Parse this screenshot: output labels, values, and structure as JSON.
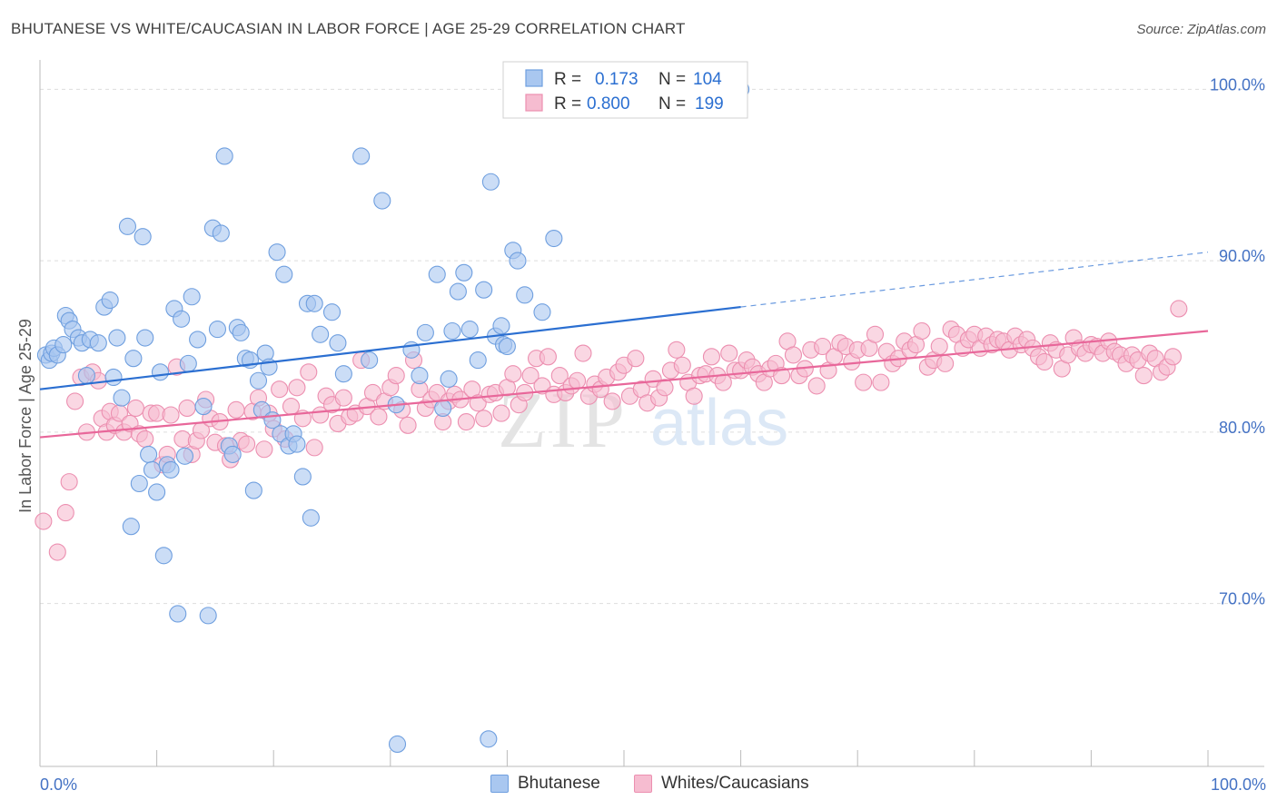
{
  "header": {
    "title": "BHUTANESE VS WHITE/CAUCASIAN IN LABOR FORCE | AGE 25-29 CORRELATION CHART",
    "source": "Source: ZipAtlas.com"
  },
  "watermark": {
    "part1": "ZIP",
    "part2": "atlas"
  },
  "legend": {
    "rows": [
      {
        "r_label": "R =",
        "r_value": "0.173",
        "n_label": "N =",
        "n_value": "104"
      },
      {
        "r_label": "R =",
        "r_value": "0.800",
        "n_label": "N =",
        "n_value": "199"
      }
    ]
  },
  "bottom_legend": {
    "series1": "Bhutanese",
    "series2": "Whites/Caucasians"
  },
  "chart_data": {
    "type": "scatter",
    "title": "BHUTANESE VS WHITE/CAUCASIAN IN LABOR FORCE | AGE 25-29 CORRELATION CHART",
    "ylabel": "In Labor Force | Age 25-29",
    "xlabel": "",
    "xlim": [
      0,
      100
    ],
    "ylim": [
      60.5,
      101.5
    ],
    "x_tick_labels": [
      "0.0%",
      "100.0%"
    ],
    "y_ticks": [
      70,
      80,
      90,
      100
    ],
    "y_tick_labels": [
      "70.0%",
      "80.0%",
      "90.0%",
      "100.0%"
    ],
    "grid": "horizontal dashed",
    "legend_position": "top-center",
    "colors": {
      "blue_fill": "#a9c7f0",
      "blue_stroke": "#6f9fdf",
      "blue_line": "#2b6fd1",
      "pink_fill": "#f6bcd0",
      "pink_stroke": "#ec8fb0",
      "pink_line": "#e8679a",
      "tick_text": "#4472c4"
    },
    "series": [
      {
        "name": "Bhutanese",
        "r": 0.173,
        "n": 104,
        "trend": {
          "x": [
            0,
            60
          ],
          "y": [
            82.5,
            87.3
          ],
          "dashed_to": [
            100,
            90.5
          ]
        },
        "points": [
          [
            0.5,
            84.5
          ],
          [
            0.8,
            84.2
          ],
          [
            1.0,
            84.6
          ],
          [
            1.2,
            84.9
          ],
          [
            1.5,
            84.5
          ],
          [
            2.0,
            85.1
          ],
          [
            2.2,
            86.8
          ],
          [
            2.5,
            86.5
          ],
          [
            2.8,
            86.0
          ],
          [
            3.3,
            85.5
          ],
          [
            3.6,
            85.2
          ],
          [
            4.0,
            83.3
          ],
          [
            4.3,
            85.4
          ],
          [
            5.0,
            85.2
          ],
          [
            5.5,
            87.3
          ],
          [
            6.0,
            87.7
          ],
          [
            6.3,
            83.2
          ],
          [
            6.6,
            85.5
          ],
          [
            7.0,
            82.0
          ],
          [
            7.5,
            92.0
          ],
          [
            7.8,
            74.5
          ],
          [
            8.0,
            84.3
          ],
          [
            8.5,
            77.0
          ],
          [
            8.8,
            91.4
          ],
          [
            9.0,
            85.5
          ],
          [
            9.3,
            78.7
          ],
          [
            9.6,
            77.8
          ],
          [
            10.0,
            76.5
          ],
          [
            10.3,
            83.5
          ],
          [
            10.6,
            72.8
          ],
          [
            10.9,
            78.1
          ],
          [
            11.2,
            77.8
          ],
          [
            11.5,
            87.2
          ],
          [
            11.8,
            69.4
          ],
          [
            12.1,
            86.6
          ],
          [
            12.4,
            78.6
          ],
          [
            12.7,
            84.0
          ],
          [
            13.0,
            87.9
          ],
          [
            13.5,
            85.4
          ],
          [
            14.0,
            81.5
          ],
          [
            14.4,
            69.3
          ],
          [
            14.8,
            91.9
          ],
          [
            15.2,
            86.0
          ],
          [
            15.5,
            91.6
          ],
          [
            15.8,
            96.1
          ],
          [
            16.2,
            79.2
          ],
          [
            16.5,
            78.7
          ],
          [
            16.9,
            86.1
          ],
          [
            17.2,
            85.8
          ],
          [
            17.6,
            84.3
          ],
          [
            18.0,
            84.2
          ],
          [
            18.3,
            76.6
          ],
          [
            18.7,
            83.0
          ],
          [
            19.0,
            81.3
          ],
          [
            19.3,
            84.6
          ],
          [
            19.6,
            83.8
          ],
          [
            19.9,
            80.7
          ],
          [
            20.3,
            90.5
          ],
          [
            20.6,
            79.9
          ],
          [
            20.9,
            89.2
          ],
          [
            21.3,
            79.2
          ],
          [
            21.7,
            79.9
          ],
          [
            22.0,
            79.3
          ],
          [
            22.5,
            77.4
          ],
          [
            22.9,
            87.5
          ],
          [
            23.2,
            75.0
          ],
          [
            23.5,
            87.5
          ],
          [
            24.0,
            85.7
          ],
          [
            25.0,
            87.0
          ],
          [
            25.5,
            85.2
          ],
          [
            26.0,
            83.4
          ],
          [
            27.5,
            96.1
          ],
          [
            28.2,
            84.2
          ],
          [
            29.3,
            93.5
          ],
          [
            30.5,
            81.6
          ],
          [
            31.8,
            84.8
          ],
          [
            32.5,
            83.3
          ],
          [
            33.0,
            85.8
          ],
          [
            34.0,
            89.2
          ],
          [
            34.5,
            81.4
          ],
          [
            35.0,
            83.1
          ],
          [
            35.3,
            85.9
          ],
          [
            35.8,
            88.2
          ],
          [
            36.3,
            89.3
          ],
          [
            36.8,
            86.0
          ],
          [
            37.5,
            84.2
          ],
          [
            38.0,
            88.3
          ],
          [
            38.6,
            94.6
          ],
          [
            39.0,
            85.6
          ],
          [
            39.5,
            86.2
          ],
          [
            39.7,
            85.1
          ],
          [
            40.0,
            85.0
          ],
          [
            40.5,
            90.6
          ],
          [
            40.9,
            90.0
          ],
          [
            41.5,
            88.0
          ],
          [
            43.0,
            87.0
          ],
          [
            44.0,
            91.3
          ],
          [
            30.6,
            61.8
          ],
          [
            38.4,
            62.1
          ],
          [
            60.0,
            100.0
          ]
        ]
      },
      {
        "name": "Whites/Caucasians",
        "r": 0.8,
        "n": 199,
        "trend": {
          "x": [
            0,
            100
          ],
          "y": [
            79.7,
            85.9
          ]
        },
        "points": [
          [
            0.3,
            74.8
          ],
          [
            1.5,
            73.0
          ],
          [
            2.2,
            75.3
          ],
          [
            2.5,
            77.1
          ],
          [
            3.0,
            81.8
          ],
          [
            3.5,
            83.2
          ],
          [
            4.0,
            80.0
          ],
          [
            4.5,
            83.5
          ],
          [
            5.0,
            83.0
          ],
          [
            5.3,
            80.8
          ],
          [
            5.7,
            80.0
          ],
          [
            6.0,
            81.2
          ],
          [
            6.4,
            80.4
          ],
          [
            6.8,
            81.1
          ],
          [
            7.2,
            80.0
          ],
          [
            7.7,
            80.5
          ],
          [
            8.2,
            81.4
          ],
          [
            8.5,
            79.9
          ],
          [
            9.0,
            79.6
          ],
          [
            9.5,
            81.1
          ],
          [
            10.0,
            81.1
          ],
          [
            10.5,
            78.1
          ],
          [
            10.9,
            78.7
          ],
          [
            11.2,
            81.0
          ],
          [
            11.7,
            83.8
          ],
          [
            12.2,
            79.6
          ],
          [
            12.6,
            81.4
          ],
          [
            13.0,
            78.7
          ],
          [
            13.4,
            79.5
          ],
          [
            13.8,
            80.1
          ],
          [
            14.2,
            81.9
          ],
          [
            14.6,
            80.8
          ],
          [
            15.0,
            79.4
          ],
          [
            15.4,
            80.6
          ],
          [
            15.9,
            79.2
          ],
          [
            16.3,
            78.4
          ],
          [
            16.8,
            81.3
          ],
          [
            17.2,
            79.5
          ],
          [
            17.7,
            79.3
          ],
          [
            18.2,
            81.2
          ],
          [
            18.7,
            82.0
          ],
          [
            19.2,
            79.0
          ],
          [
            19.6,
            81.1
          ],
          [
            20.0,
            80.2
          ],
          [
            20.5,
            82.5
          ],
          [
            21.0,
            79.6
          ],
          [
            21.5,
            81.5
          ],
          [
            22.0,
            82.6
          ],
          [
            22.5,
            80.8
          ],
          [
            23.0,
            83.5
          ],
          [
            23.5,
            79.1
          ],
          [
            24.0,
            81.0
          ],
          [
            24.5,
            82.1
          ],
          [
            25.0,
            81.6
          ],
          [
            25.5,
            80.5
          ],
          [
            26.0,
            82.0
          ],
          [
            26.5,
            80.9
          ],
          [
            27.0,
            81.1
          ],
          [
            27.5,
            84.2
          ],
          [
            28.0,
            81.5
          ],
          [
            28.5,
            82.3
          ],
          [
            29.0,
            80.9
          ],
          [
            29.5,
            81.8
          ],
          [
            30.0,
            82.6
          ],
          [
            30.5,
            83.3
          ],
          [
            31.0,
            81.3
          ],
          [
            31.5,
            80.4
          ],
          [
            32.0,
            84.2
          ],
          [
            32.5,
            82.5
          ],
          [
            33.0,
            81.4
          ],
          [
            33.5,
            81.9
          ],
          [
            34.0,
            82.3
          ],
          [
            34.5,
            80.6
          ],
          [
            35.0,
            81.8
          ],
          [
            35.5,
            82.2
          ],
          [
            36.0,
            81.9
          ],
          [
            36.5,
            80.6
          ],
          [
            37.0,
            82.5
          ],
          [
            37.5,
            81.7
          ],
          [
            38.0,
            80.8
          ],
          [
            38.5,
            82.2
          ],
          [
            39.0,
            82.3
          ],
          [
            39.5,
            81.1
          ],
          [
            40.0,
            82.6
          ],
          [
            40.5,
            83.4
          ],
          [
            41.0,
            81.6
          ],
          [
            41.5,
            82.3
          ],
          [
            42.0,
            83.3
          ],
          [
            42.5,
            84.3
          ],
          [
            43.0,
            82.7
          ],
          [
            43.5,
            84.4
          ],
          [
            44.0,
            82.2
          ],
          [
            44.5,
            83.3
          ],
          [
            45.0,
            82.3
          ],
          [
            45.5,
            82.7
          ],
          [
            46.0,
            83.0
          ],
          [
            46.5,
            84.6
          ],
          [
            47.0,
            82.1
          ],
          [
            47.5,
            82.8
          ],
          [
            48.0,
            82.5
          ],
          [
            48.5,
            83.2
          ],
          [
            49.0,
            81.8
          ],
          [
            49.5,
            83.5
          ],
          [
            50.0,
            83.9
          ],
          [
            50.5,
            82.1
          ],
          [
            51.0,
            84.3
          ],
          [
            51.5,
            82.5
          ],
          [
            52.0,
            81.7
          ],
          [
            52.5,
            83.1
          ],
          [
            53.0,
            82.0
          ],
          [
            53.5,
            82.6
          ],
          [
            54.0,
            83.6
          ],
          [
            54.5,
            84.8
          ],
          [
            55.0,
            83.9
          ],
          [
            55.5,
            82.9
          ],
          [
            56.0,
            82.1
          ],
          [
            56.5,
            83.3
          ],
          [
            57.0,
            83.4
          ],
          [
            57.5,
            84.4
          ],
          [
            58.0,
            83.3
          ],
          [
            58.5,
            82.9
          ],
          [
            59.0,
            84.6
          ],
          [
            59.5,
            83.6
          ],
          [
            60.0,
            83.6
          ],
          [
            60.5,
            84.2
          ],
          [
            61.0,
            83.8
          ],
          [
            61.5,
            83.4
          ],
          [
            62.0,
            82.9
          ],
          [
            62.5,
            83.7
          ],
          [
            63.0,
            84.0
          ],
          [
            63.5,
            83.3
          ],
          [
            64.0,
            85.3
          ],
          [
            64.5,
            84.5
          ],
          [
            65.0,
            83.3
          ],
          [
            65.5,
            83.7
          ],
          [
            66.0,
            84.8
          ],
          [
            66.5,
            82.7
          ],
          [
            67.0,
            85.0
          ],
          [
            67.5,
            83.6
          ],
          [
            68.0,
            84.4
          ],
          [
            68.5,
            85.2
          ],
          [
            69.0,
            85.0
          ],
          [
            69.5,
            84.1
          ],
          [
            70.0,
            84.8
          ],
          [
            70.5,
            82.9
          ],
          [
            71.0,
            84.9
          ],
          [
            71.5,
            85.7
          ],
          [
            72.0,
            82.9
          ],
          [
            72.5,
            84.7
          ],
          [
            73.0,
            84.0
          ],
          [
            73.5,
            84.3
          ],
          [
            74.0,
            85.3
          ],
          [
            74.5,
            84.8
          ],
          [
            75.0,
            85.1
          ],
          [
            75.5,
            85.9
          ],
          [
            76.0,
            83.8
          ],
          [
            76.5,
            84.2
          ],
          [
            77.0,
            85.0
          ],
          [
            77.5,
            84.0
          ],
          [
            78.0,
            86.0
          ],
          [
            78.5,
            85.7
          ],
          [
            79.0,
            84.9
          ],
          [
            79.5,
            85.4
          ],
          [
            80.0,
            85.7
          ],
          [
            80.5,
            84.9
          ],
          [
            81.0,
            85.6
          ],
          [
            81.5,
            85.1
          ],
          [
            82.0,
            85.4
          ],
          [
            82.5,
            85.3
          ],
          [
            83.0,
            84.8
          ],
          [
            83.5,
            85.6
          ],
          [
            84.0,
            85.1
          ],
          [
            84.5,
            85.4
          ],
          [
            85.0,
            84.9
          ],
          [
            85.5,
            84.4
          ],
          [
            86.0,
            84.1
          ],
          [
            86.5,
            85.2
          ],
          [
            87.0,
            84.8
          ],
          [
            87.5,
            83.7
          ],
          [
            88.0,
            84.5
          ],
          [
            88.5,
            85.5
          ],
          [
            89.0,
            84.9
          ],
          [
            89.5,
            84.6
          ],
          [
            90.0,
            85.1
          ],
          [
            90.5,
            85.0
          ],
          [
            91.0,
            84.6
          ],
          [
            91.5,
            85.3
          ],
          [
            92.0,
            84.7
          ],
          [
            92.5,
            84.5
          ],
          [
            93.0,
            84.0
          ],
          [
            93.5,
            84.5
          ],
          [
            94.0,
            84.2
          ],
          [
            94.5,
            83.3
          ],
          [
            95.0,
            84.6
          ],
          [
            95.5,
            84.3
          ],
          [
            96.0,
            83.5
          ],
          [
            96.5,
            83.8
          ],
          [
            97.0,
            84.4
          ],
          [
            97.5,
            87.2
          ]
        ]
      }
    ]
  }
}
